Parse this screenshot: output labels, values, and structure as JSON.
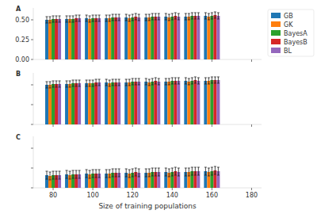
{
  "chart_data": [
    {
      "type": "bar",
      "title": "A",
      "legend": "right",
      "tick_labels": "y",
      "x": [
        80,
        90,
        100,
        110,
        120,
        130,
        140,
        150,
        160
      ],
      "xlim": [
        70,
        185
      ],
      "xticks": [
        80,
        100,
        120,
        140,
        160,
        180
      ],
      "ylim": [
        0,
        0.65
      ],
      "yticks": [
        {
          "value": 0,
          "label": "0.00"
        },
        {
          "value": 0.25,
          "label": "0.25"
        },
        {
          "value": 0.5,
          "label": "0.50"
        }
      ],
      "series": [
        {
          "name": "GB",
          "color": "#1f77b4",
          "values": [
            0.5,
            0.51,
            0.52,
            0.52,
            0.53,
            0.53,
            0.54,
            0.54,
            0.55
          ],
          "errors": [
            0.04,
            0.04,
            0.04,
            0.04,
            0.04,
            0.04,
            0.04,
            0.04,
            0.04
          ]
        },
        {
          "name": "GK",
          "color": "#ff7f0e",
          "values": [
            0.5,
            0.51,
            0.51,
            0.52,
            0.52,
            0.53,
            0.53,
            0.54,
            0.54
          ],
          "errors": [
            0.04,
            0.04,
            0.04,
            0.04,
            0.04,
            0.04,
            0.04,
            0.04,
            0.04
          ]
        },
        {
          "name": "BayesA",
          "color": "#2ca02c",
          "values": [
            0.51,
            0.51,
            0.52,
            0.53,
            0.53,
            0.54,
            0.54,
            0.55,
            0.55
          ],
          "errors": [
            0.04,
            0.04,
            0.04,
            0.04,
            0.04,
            0.04,
            0.04,
            0.04,
            0.04
          ]
        },
        {
          "name": "BayesB",
          "color": "#d62728",
          "values": [
            0.51,
            0.52,
            0.52,
            0.53,
            0.54,
            0.54,
            0.55,
            0.55,
            0.56
          ],
          "errors": [
            0.04,
            0.04,
            0.04,
            0.04,
            0.04,
            0.04,
            0.04,
            0.04,
            0.04
          ]
        },
        {
          "name": "BL",
          "color": "#9467bd",
          "values": [
            0.51,
            0.52,
            0.52,
            0.53,
            0.53,
            0.54,
            0.54,
            0.55,
            0.55
          ],
          "errors": [
            0.04,
            0.04,
            0.04,
            0.04,
            0.04,
            0.04,
            0.04,
            0.04,
            0.04
          ]
        }
      ]
    },
    {
      "type": "bar",
      "title": "B",
      "tick_labels": false,
      "x": [
        80,
        90,
        100,
        110,
        120,
        130,
        140,
        150,
        160
      ],
      "xlim": [
        70,
        185
      ],
      "xticks": [
        80,
        100,
        120,
        140,
        160,
        180
      ],
      "ylim": [
        0,
        0.65
      ],
      "yticks": [
        0,
        0.25,
        0.5
      ],
      "series": [
        {
          "color": "#1f77b4",
          "values": [
            0.5,
            0.51,
            0.52,
            0.53,
            0.53,
            0.54,
            0.54,
            0.55,
            0.55
          ],
          "errors": [
            0.04,
            0.04,
            0.04,
            0.04,
            0.04,
            0.04,
            0.04,
            0.04,
            0.04
          ]
        },
        {
          "color": "#ff7f0e",
          "values": [
            0.5,
            0.51,
            0.52,
            0.52,
            0.53,
            0.53,
            0.54,
            0.54,
            0.55
          ],
          "errors": [
            0.04,
            0.04,
            0.04,
            0.04,
            0.04,
            0.04,
            0.04,
            0.04,
            0.04
          ]
        },
        {
          "color": "#2ca02c",
          "values": [
            0.51,
            0.52,
            0.52,
            0.53,
            0.54,
            0.54,
            0.55,
            0.55,
            0.56
          ],
          "errors": [
            0.04,
            0.04,
            0.04,
            0.04,
            0.04,
            0.04,
            0.04,
            0.04,
            0.04
          ]
        },
        {
          "color": "#d62728",
          "values": [
            0.51,
            0.52,
            0.53,
            0.53,
            0.54,
            0.55,
            0.55,
            0.56,
            0.56
          ],
          "errors": [
            0.04,
            0.04,
            0.04,
            0.04,
            0.04,
            0.04,
            0.04,
            0.04,
            0.04
          ]
        },
        {
          "color": "#9467bd",
          "values": [
            0.51,
            0.52,
            0.53,
            0.53,
            0.54,
            0.54,
            0.55,
            0.55,
            0.56
          ],
          "errors": [
            0.04,
            0.04,
            0.04,
            0.04,
            0.04,
            0.04,
            0.04,
            0.04,
            0.04
          ]
        }
      ]
    },
    {
      "type": "bar",
      "title": "C",
      "tick_labels": "x",
      "xlabel": "Size of training populations",
      "x": [
        80,
        90,
        100,
        110,
        120,
        130,
        140,
        150,
        160
      ],
      "xlim": [
        70,
        185
      ],
      "xticks": [
        80,
        100,
        120,
        140,
        160,
        180
      ],
      "ylim": [
        0,
        0.65
      ],
      "yticks": [
        0,
        0.25,
        0.5
      ],
      "series": [
        {
          "color": "#1f77b4",
          "values": [
            0.16,
            0.17,
            0.18,
            0.18,
            0.19,
            0.19,
            0.2,
            0.2,
            0.21
          ],
          "errors": [
            0.05,
            0.05,
            0.05,
            0.05,
            0.05,
            0.05,
            0.05,
            0.05,
            0.05
          ]
        },
        {
          "color": "#ff7f0e",
          "values": [
            0.15,
            0.16,
            0.17,
            0.18,
            0.18,
            0.19,
            0.19,
            0.2,
            0.2
          ],
          "errors": [
            0.05,
            0.05,
            0.05,
            0.05,
            0.05,
            0.05,
            0.05,
            0.05,
            0.05
          ]
        },
        {
          "color": "#2ca02c",
          "values": [
            0.16,
            0.17,
            0.18,
            0.19,
            0.19,
            0.2,
            0.2,
            0.21,
            0.21
          ],
          "errors": [
            0.05,
            0.05,
            0.05,
            0.05,
            0.05,
            0.05,
            0.05,
            0.05,
            0.05
          ]
        },
        {
          "color": "#d62728",
          "values": [
            0.16,
            0.17,
            0.18,
            0.19,
            0.2,
            0.2,
            0.21,
            0.21,
            0.22
          ],
          "errors": [
            0.05,
            0.05,
            0.05,
            0.05,
            0.05,
            0.05,
            0.05,
            0.05,
            0.05
          ]
        },
        {
          "color": "#9467bd",
          "values": [
            0.16,
            0.17,
            0.18,
            0.19,
            0.19,
            0.2,
            0.2,
            0.21,
            0.21
          ],
          "errors": [
            0.05,
            0.05,
            0.05,
            0.05,
            0.05,
            0.05,
            0.05,
            0.05,
            0.05
          ]
        }
      ]
    }
  ]
}
